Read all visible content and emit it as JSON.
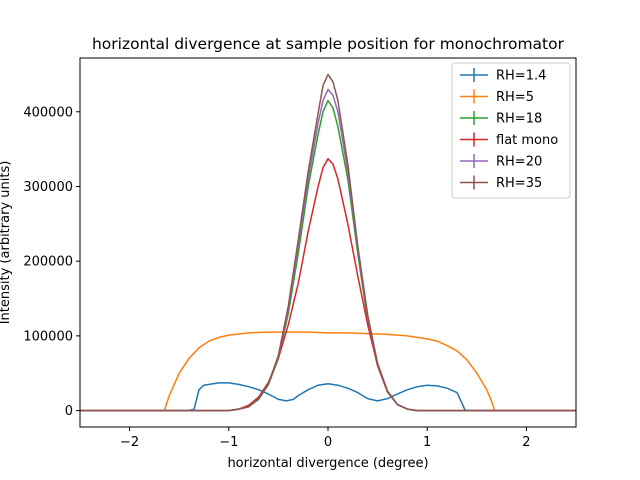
{
  "chart_data": {
    "type": "line",
    "title": "horizontal divergence at sample position for monochromator",
    "xlabel": "horizontal divergence (degree)",
    "ylabel": "Intensity (arbitrary units)",
    "xlim": [
      -2.5,
      2.5
    ],
    "ylim": [
      -22000,
      472000
    ],
    "xticks": [
      -2,
      -1,
      0,
      1,
      2
    ],
    "xtick_labels": [
      "−2",
      "−1",
      "0",
      "1",
      "2"
    ],
    "yticks": [
      0,
      100000,
      200000,
      300000,
      400000
    ],
    "ytick_labels": [
      "0",
      "100000",
      "200000",
      "300000",
      "400000"
    ],
    "grid": false,
    "legend_position": "top-right",
    "series": [
      {
        "name": "RH=1.4",
        "color": "#1f77b4",
        "points": [
          [
            -2.5,
            0
          ],
          [
            -1.4,
            0
          ],
          [
            -1.35,
            2000
          ],
          [
            -1.3,
            28000
          ],
          [
            -1.25,
            34000
          ],
          [
            -1.2,
            35000
          ],
          [
            -1.1,
            37000
          ],
          [
            -1.0,
            37000
          ],
          [
            -0.9,
            35000
          ],
          [
            -0.8,
            32000
          ],
          [
            -0.7,
            28000
          ],
          [
            -0.6,
            22000
          ],
          [
            -0.5,
            15000
          ],
          [
            -0.42,
            13000
          ],
          [
            -0.35,
            15000
          ],
          [
            -0.3,
            20000
          ],
          [
            -0.2,
            28000
          ],
          [
            -0.1,
            34000
          ],
          [
            0.0,
            36000
          ],
          [
            0.1,
            34000
          ],
          [
            0.2,
            30000
          ],
          [
            0.3,
            24000
          ],
          [
            0.4,
            16000
          ],
          [
            0.5,
            13000
          ],
          [
            0.6,
            16000
          ],
          [
            0.7,
            22000
          ],
          [
            0.8,
            28000
          ],
          [
            0.9,
            32000
          ],
          [
            1.0,
            34000
          ],
          [
            1.1,
            33000
          ],
          [
            1.2,
            30000
          ],
          [
            1.3,
            24000
          ],
          [
            1.35,
            10000
          ],
          [
            1.38,
            1000
          ],
          [
            1.4,
            0
          ],
          [
            2.5,
            0
          ]
        ]
      },
      {
        "name": "RH=5",
        "color": "#ff7f0e",
        "points": [
          [
            -2.5,
            0
          ],
          [
            -1.65,
            0
          ],
          [
            -1.6,
            20000
          ],
          [
            -1.5,
            50000
          ],
          [
            -1.4,
            70000
          ],
          [
            -1.3,
            84000
          ],
          [
            -1.2,
            93000
          ],
          [
            -1.1,
            98000
          ],
          [
            -1.0,
            101000
          ],
          [
            -0.8,
            104000
          ],
          [
            -0.6,
            105000
          ],
          [
            -0.4,
            105000
          ],
          [
            -0.2,
            105000
          ],
          [
            0.0,
            104000
          ],
          [
            0.2,
            104000
          ],
          [
            0.4,
            103000
          ],
          [
            0.6,
            102000
          ],
          [
            0.8,
            100000
          ],
          [
            1.0,
            96000
          ],
          [
            1.1,
            93000
          ],
          [
            1.2,
            87000
          ],
          [
            1.3,
            80000
          ],
          [
            1.4,
            68000
          ],
          [
            1.5,
            50000
          ],
          [
            1.6,
            28000
          ],
          [
            1.65,
            12000
          ],
          [
            1.68,
            0
          ],
          [
            2.5,
            0
          ]
        ]
      },
      {
        "name": "RH=18",
        "color": "#2ca02c",
        "points": [
          [
            -2.5,
            0
          ],
          [
            -1.0,
            0
          ],
          [
            -0.9,
            2000
          ],
          [
            -0.8,
            5000
          ],
          [
            -0.7,
            15000
          ],
          [
            -0.6,
            35000
          ],
          [
            -0.5,
            70000
          ],
          [
            -0.4,
            130000
          ],
          [
            -0.3,
            210000
          ],
          [
            -0.2,
            300000
          ],
          [
            -0.1,
            370000
          ],
          [
            -0.05,
            400000
          ],
          [
            0.0,
            415000
          ],
          [
            0.05,
            405000
          ],
          [
            0.1,
            380000
          ],
          [
            0.2,
            310000
          ],
          [
            0.3,
            210000
          ],
          [
            0.4,
            120000
          ],
          [
            0.5,
            60000
          ],
          [
            0.6,
            25000
          ],
          [
            0.7,
            8000
          ],
          [
            0.8,
            2000
          ],
          [
            0.9,
            0
          ],
          [
            2.5,
            0
          ]
        ]
      },
      {
        "name": "flat mono",
        "color": "#d62728",
        "points": [
          [
            -2.5,
            0
          ],
          [
            -1.0,
            0
          ],
          [
            -0.9,
            2000
          ],
          [
            -0.8,
            7000
          ],
          [
            -0.7,
            18000
          ],
          [
            -0.6,
            38000
          ],
          [
            -0.5,
            70000
          ],
          [
            -0.4,
            115000
          ],
          [
            -0.3,
            170000
          ],
          [
            -0.2,
            240000
          ],
          [
            -0.1,
            300000
          ],
          [
            -0.05,
            325000
          ],
          [
            0.0,
            337000
          ],
          [
            0.05,
            330000
          ],
          [
            0.1,
            310000
          ],
          [
            0.2,
            250000
          ],
          [
            0.3,
            180000
          ],
          [
            0.4,
            115000
          ],
          [
            0.5,
            60000
          ],
          [
            0.6,
            25000
          ],
          [
            0.7,
            8000
          ],
          [
            0.8,
            2000
          ],
          [
            0.9,
            0
          ],
          [
            2.5,
            0
          ]
        ]
      },
      {
        "name": "RH=20",
        "color": "#9467bd",
        "points": [
          [
            -2.5,
            0
          ],
          [
            -1.0,
            0
          ],
          [
            -0.9,
            2000
          ],
          [
            -0.8,
            5000
          ],
          [
            -0.7,
            16000
          ],
          [
            -0.6,
            36000
          ],
          [
            -0.5,
            72000
          ],
          [
            -0.4,
            135000
          ],
          [
            -0.3,
            220000
          ],
          [
            -0.2,
            310000
          ],
          [
            -0.1,
            385000
          ],
          [
            -0.05,
            415000
          ],
          [
            0.0,
            430000
          ],
          [
            0.05,
            422000
          ],
          [
            0.1,
            400000
          ],
          [
            0.2,
            320000
          ],
          [
            0.3,
            215000
          ],
          [
            0.4,
            125000
          ],
          [
            0.5,
            62000
          ],
          [
            0.6,
            26000
          ],
          [
            0.7,
            8000
          ],
          [
            0.8,
            2000
          ],
          [
            0.9,
            0
          ],
          [
            2.5,
            0
          ]
        ]
      },
      {
        "name": "RH=35",
        "color": "#8c564b",
        "points": [
          [
            -2.5,
            0
          ],
          [
            -1.0,
            0
          ],
          [
            -0.9,
            2000
          ],
          [
            -0.8,
            5000
          ],
          [
            -0.7,
            16000
          ],
          [
            -0.6,
            36000
          ],
          [
            -0.5,
            74000
          ],
          [
            -0.4,
            140000
          ],
          [
            -0.3,
            228000
          ],
          [
            -0.2,
            320000
          ],
          [
            -0.1,
            398000
          ],
          [
            -0.05,
            435000
          ],
          [
            0.0,
            450000
          ],
          [
            0.05,
            440000
          ],
          [
            0.1,
            415000
          ],
          [
            0.2,
            330000
          ],
          [
            0.3,
            220000
          ],
          [
            0.4,
            128000
          ],
          [
            0.5,
            63000
          ],
          [
            0.6,
            26000
          ],
          [
            0.7,
            8000
          ],
          [
            0.8,
            2000
          ],
          [
            0.9,
            0
          ],
          [
            2.5,
            0
          ]
        ]
      }
    ]
  }
}
